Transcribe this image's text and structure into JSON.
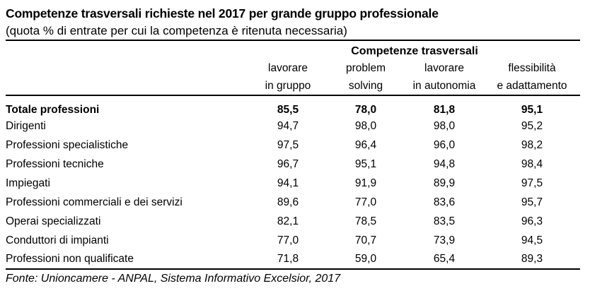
{
  "chart_data": {
    "type": "table",
    "title": "Competenze trasversali richieste nel 2017 per grande gruppo professionale",
    "subtitle": "(quota % di entrate per cui la competenza è ritenuta necessaria)",
    "group_header": "Competenze trasversali",
    "columns": [
      {
        "line1": "lavorare",
        "line2": "in gruppo"
      },
      {
        "line1": "problem",
        "line2": "solving"
      },
      {
        "line1": "lavorare",
        "line2": "in autonomia"
      },
      {
        "line1": "flessibilità",
        "line2": "e adattamento"
      }
    ],
    "rows": [
      {
        "label": "Totale professioni",
        "bold": true,
        "values": [
          "85,5",
          "78,0",
          "81,8",
          "95,1"
        ]
      },
      {
        "label": "Dirigenti",
        "bold": false,
        "values": [
          "94,7",
          "98,0",
          "98,0",
          "95,2"
        ]
      },
      {
        "label": "Professioni specialistiche",
        "bold": false,
        "values": [
          "97,5",
          "96,4",
          "96,0",
          "98,2"
        ]
      },
      {
        "label": "Professioni tecniche",
        "bold": false,
        "values": [
          "96,7",
          "95,1",
          "94,8",
          "98,4"
        ]
      },
      {
        "label": "Impiegati",
        "bold": false,
        "values": [
          "94,1",
          "91,9",
          "89,9",
          "97,5"
        ]
      },
      {
        "label": "Professioni commerciali e dei servizi",
        "bold": false,
        "values": [
          "89,6",
          "77,0",
          "83,6",
          "95,7"
        ]
      },
      {
        "label": "Operai specializzati",
        "bold": false,
        "values": [
          "82,1",
          "78,5",
          "83,5",
          "96,3"
        ]
      },
      {
        "label": "Conduttori di impianti",
        "bold": false,
        "values": [
          "77,0",
          "70,7",
          "73,9",
          "94,5"
        ]
      },
      {
        "label": "Professioni non qualificate",
        "bold": false,
        "values": [
          "71,8",
          "59,0",
          "65,4",
          "89,3"
        ]
      }
    ],
    "source": "Fonte: Unioncamere - ANPAL, Sistema Informativo Excelsior, 2017",
    "colors": {
      "text": "#000000",
      "background": "#ffffff",
      "rule": "#000000"
    },
    "value_format": "percent, Italian decimal comma",
    "value_range": [
      59.0,
      98.4
    ]
  }
}
